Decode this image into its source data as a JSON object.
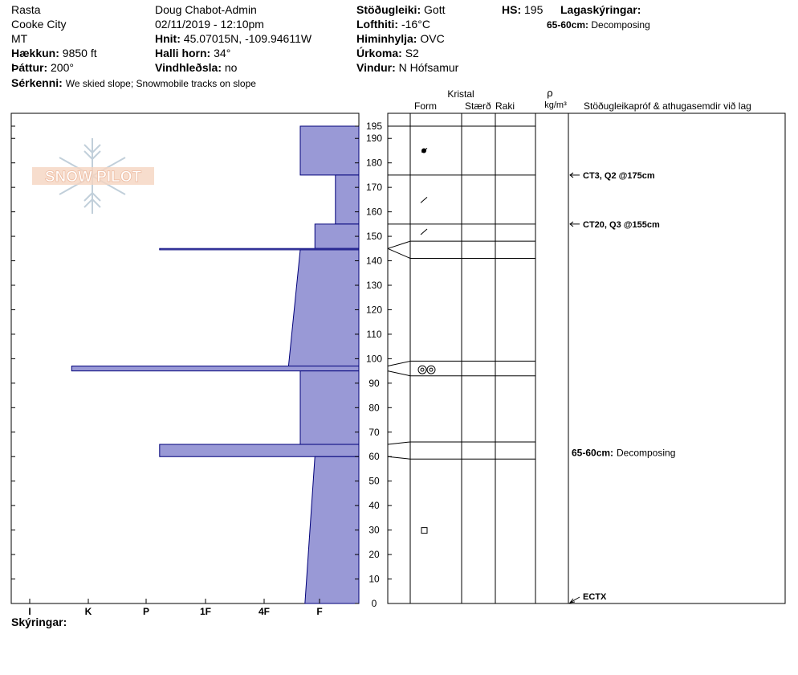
{
  "header": {
    "location": "Rasta",
    "area": "Cooke City",
    "state": "MT",
    "elevation_label": "Hækkun:",
    "elevation_value": "9850 ft",
    "aspect_label": "Þáttur:",
    "aspect_value": "200°",
    "observer": "Doug Chabot-Admin",
    "datetime": "02/11/2019 - 12:10pm",
    "coords_label": "Hnit:",
    "coords_value": "45.07015N, -109.94611W",
    "slope_label": "Halli horn:",
    "slope_value": "34°",
    "wind_loading_label": "Vindhleðsla:",
    "wind_loading_value": "no",
    "stability_label": "Stöðugleiki:",
    "stability_value": "Gott",
    "air_temp_label": "Lofthiti:",
    "air_temp_value": "-16°C",
    "sky_label": "Himinhylja:",
    "sky_value": "OVC",
    "precip_label": "Úrkoma:",
    "precip_value": "S2",
    "wind_label": "Vindur:",
    "wind_value": "N Hófsamur",
    "hs_label": "HS:",
    "hs_value": "195",
    "layer_notes_label": "Lagaskýringar:",
    "layer_note_range": "65-60cm:",
    "layer_note_text": "Decomposing",
    "features_label": "Sérkenni:",
    "features_value": "We skied slope; Snowmobile tracks on slope",
    "notes_label": "Skýringar:"
  },
  "logo": {
    "text": "SNOW PILOT"
  },
  "column_headers": {
    "crystal": "Kristal",
    "form": "Form",
    "size": "Stærð",
    "moisture": "Raki",
    "rho": "ρ",
    "density_unit": "kg/m³",
    "tests": "Stöðugleikapróf & athugasemdir við lag"
  },
  "colors": {
    "layer_fill": "#9999d6",
    "layer_stroke": "#00007a"
  },
  "chart_data": {
    "type": "area",
    "x_ticks": [
      "I",
      "K",
      "P",
      "1F",
      "4F",
      "F"
    ],
    "y_ticks": [
      0,
      10,
      20,
      30,
      40,
      50,
      60,
      70,
      80,
      90,
      100,
      110,
      120,
      130,
      140,
      150,
      160,
      170,
      180,
      190,
      195
    ],
    "ylim": [
      0,
      195
    ],
    "snow_height_cm": 195,
    "hardness_profile": [
      {
        "top": 195,
        "bottom": 175,
        "hardness_top": 1.0,
        "hardness_bottom": 1.0
      },
      {
        "top": 175,
        "bottom": 155,
        "hardness_top": 0.4,
        "hardness_bottom": 0.4
      },
      {
        "top": 155,
        "bottom": 145,
        "hardness_top": 0.75,
        "hardness_bottom": 0.75
      },
      {
        "top": 145,
        "bottom": 144.5,
        "hardness_top": 3.4,
        "hardness_bottom": 3.4
      },
      {
        "top": 144.5,
        "bottom": 97,
        "hardness_top": 1.0,
        "hardness_bottom": 1.2
      },
      {
        "top": 97,
        "bottom": 95,
        "hardness_top": 4.9,
        "hardness_bottom": 4.9
      },
      {
        "top": 95,
        "bottom": 65,
        "hardness_top": 1.0,
        "hardness_bottom": 1.0
      },
      {
        "top": 65,
        "bottom": 60,
        "hardness_top": 3.4,
        "hardness_bottom": 3.4
      },
      {
        "top": 60,
        "bottom": 0,
        "hardness_top": 0.75,
        "hardness_bottom": 0.92
      }
    ],
    "layer_boundaries": [
      195,
      175,
      155,
      148,
      141,
      99,
      93,
      66,
      59
    ],
    "grain_forms": [
      {
        "height": 185,
        "symbol": "dot"
      },
      {
        "height": 165,
        "symbol": "slash"
      },
      {
        "height": 152,
        "symbol": "slash"
      },
      {
        "height": 95.5,
        "symbol": "double-ring"
      },
      {
        "height": 30,
        "symbol": "square"
      }
    ],
    "tests": [
      {
        "height": 175,
        "label": "CT3, Q2 @175cm"
      },
      {
        "height": 155,
        "label": "CT20, Q3 @155cm"
      },
      {
        "height": 0,
        "label": "ECTX"
      }
    ],
    "comments": [
      {
        "height": 61.5,
        "range": "65-60cm:",
        "text": "Decomposing"
      }
    ]
  }
}
